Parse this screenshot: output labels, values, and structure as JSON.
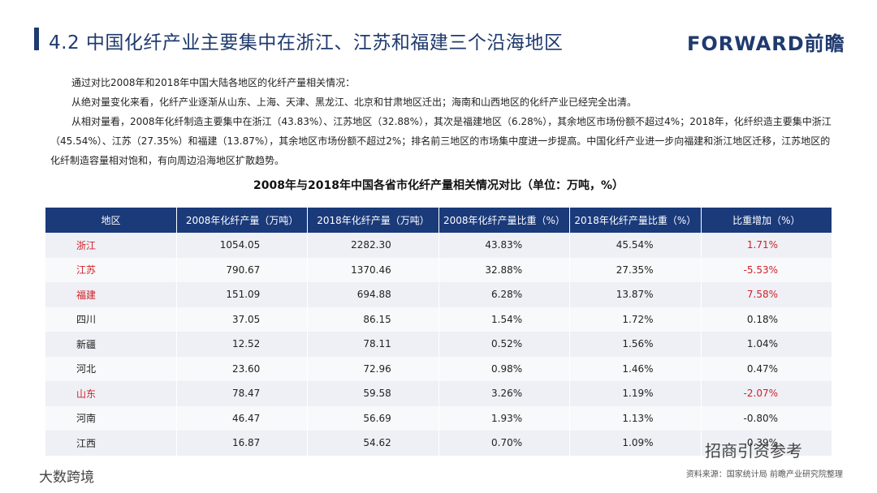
{
  "header": {
    "title": "4.2 中国化纤产业主要集中在浙江、江苏和福建三个沿海地区",
    "logo": "FORWARD前瞻"
  },
  "intro": [
    "通过对比2008年和2018年中国大陆各地区的化纤产量相关情况：",
    "从绝对量变化来看，化纤产业逐渐从山东、上海、天津、黑龙江、北京和甘肃地区迁出；海南和山西地区的化纤产业已经完全出清。",
    "从相对量看，2008年化纤制造主要集中在浙江（43.83%）、江苏地区（32.88%），其次是福建地区（6.28%），其余地区市场份额不超过4%；2018年，化纤织造主要集中浙江（45.54%）、江苏（27.35%）和福建（13.87%），其余地区市场份额不超过2%；排名前三地区的市场集中度进一步提高。中国化纤产业进一步向福建和浙江地区迁移，江苏地区的化纤制造容量相对饱和，有向周边沿海地区扩散趋势。"
  ],
  "table": {
    "title": "2008年与2018年中国各省市化纤产量相关情况对比（单位：万吨，%）",
    "columns": [
      "地区",
      "2008年化纤产量（万吨）",
      "2018年化纤产量（万吨）",
      "2008年化纤产量比重（%）",
      "2018年化纤产量比重（%）",
      "比重增加（%）"
    ],
    "rows": [
      {
        "cells": [
          "浙江",
          "1054.05",
          "2282.30",
          "43.83%",
          "45.54%",
          "1.71%"
        ],
        "highlight": true
      },
      {
        "cells": [
          "江苏",
          "790.67",
          "1370.46",
          "32.88%",
          "27.35%",
          "-5.53%"
        ],
        "highlight": true
      },
      {
        "cells": [
          "福建",
          "151.09",
          "694.88",
          "6.28%",
          "13.87%",
          "7.58%"
        ],
        "highlight": true
      },
      {
        "cells": [
          "四川",
          "37.05",
          "86.15",
          "1.54%",
          "1.72%",
          "0.18%"
        ],
        "highlight": false
      },
      {
        "cells": [
          "新疆",
          "12.52",
          "78.11",
          "0.52%",
          "1.56%",
          "1.04%"
        ],
        "highlight": false
      },
      {
        "cells": [
          "河北",
          "23.60",
          "72.96",
          "0.98%",
          "1.46%",
          "0.47%"
        ],
        "highlight": false
      },
      {
        "cells": [
          "山东",
          "78.47",
          "59.58",
          "3.26%",
          "1.19%",
          "-2.07%"
        ],
        "highlight": true
      },
      {
        "cells": [
          "河南",
          "46.47",
          "56.69",
          "1.93%",
          "1.13%",
          "-0.80%"
        ],
        "highlight": false
      },
      {
        "cells": [
          "江西",
          "16.87",
          "54.62",
          "0.70%",
          "1.09%",
          "0.39%"
        ],
        "highlight": false
      }
    ]
  },
  "source": "资料来源：国家统计局 前瞻产业研究院整理",
  "watermarks": [
    "招商引资参考",
    "大数跨境"
  ]
}
